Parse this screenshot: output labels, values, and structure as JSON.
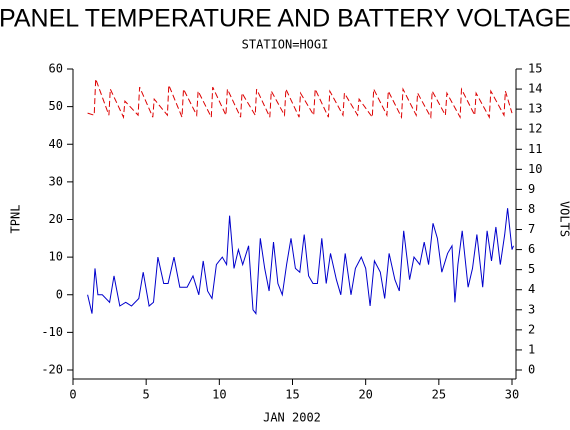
{
  "chart_data": {
    "type": "line",
    "title": "PANEL TEMPERATURE AND BATTERY VOLTAGE",
    "subtitle": "STATION=HOGI",
    "x_label": "JAN 2002",
    "y_label": "TPNL",
    "y2_label": "VOLTS",
    "xlim": [
      0,
      30
    ],
    "xticks": [
      0,
      5,
      10,
      15,
      20,
      25,
      30
    ],
    "ylim": [
      -20,
      60
    ],
    "yticks": [
      -20,
      -10,
      0,
      10,
      20,
      30,
      40,
      50,
      60
    ],
    "y2lim": [
      0,
      15
    ],
    "y2ticks": [
      0,
      1,
      2,
      3,
      4,
      5,
      6,
      7,
      8,
      9,
      10,
      11,
      12,
      13,
      14,
      15
    ],
    "series": [
      {
        "name": "TPNL",
        "color": "#0000cc",
        "dashed": false,
        "x": [
          1,
          1.3,
          1.5,
          1.7,
          2,
          2.5,
          2.8,
          3.2,
          3.6,
          4,
          4.5,
          4.8,
          5.2,
          5.5,
          5.8,
          6.2,
          6.5,
          6.9,
          7.3,
          7.8,
          8.2,
          8.6,
          8.9,
          9.2,
          9.5,
          9.8,
          10.2,
          10.5,
          10.7,
          11,
          11.3,
          11.6,
          12,
          12.3,
          12.5,
          12.8,
          13.1,
          13.4,
          13.7,
          14,
          14.3,
          14.6,
          14.9,
          15.2,
          15.5,
          15.8,
          16.1,
          16.4,
          16.7,
          17,
          17.3,
          17.6,
          18,
          18.3,
          18.6,
          19,
          19.3,
          19.7,
          20,
          20.3,
          20.6,
          21,
          21.3,
          21.6,
          22,
          22.3,
          22.6,
          23,
          23.3,
          23.7,
          24,
          24.3,
          24.6,
          24.9,
          25.2,
          25.6,
          25.9,
          26.1,
          26.3,
          26.6,
          27,
          27.3,
          27.6,
          28,
          28.3,
          28.6,
          28.9,
          29.2,
          29.5,
          29.7,
          30,
          30.1
        ],
        "values": [
          0,
          -5,
          7,
          0,
          0,
          -2,
          5,
          -3,
          -2,
          -3,
          -1,
          6,
          -3,
          -2,
          10,
          3,
          3,
          10,
          2,
          2,
          5,
          0,
          9,
          1,
          -1,
          8,
          10,
          8,
          21,
          7,
          12,
          8,
          13,
          -4,
          -5,
          15,
          7,
          1,
          14,
          3,
          0,
          8,
          15,
          7,
          6,
          16,
          5,
          3,
          3,
          15,
          3,
          11,
          4,
          0,
          11,
          0,
          7,
          10,
          7,
          -3,
          9,
          6,
          -1,
          11,
          4,
          1,
          17,
          4,
          10,
          8,
          14,
          8,
          19,
          15,
          6,
          11,
          13,
          -2,
          8,
          17,
          2,
          7,
          16,
          2,
          17,
          9,
          18,
          8,
          16,
          23,
          12,
          13
        ]
      },
      {
        "name": "VOLTS",
        "color": "#dd0000",
        "dashed": true,
        "axis": "y2",
        "x": [
          1,
          1.45,
          1.55,
          2.45,
          2.55,
          3.45,
          3.55,
          4.45,
          4.55,
          5.45,
          5.55,
          6.45,
          6.55,
          7.45,
          7.55,
          8.45,
          8.55,
          9.45,
          9.55,
          10.45,
          10.55,
          11.45,
          11.55,
          12.45,
          12.55,
          13.45,
          13.55,
          14.45,
          14.55,
          15.45,
          15.55,
          16.45,
          16.55,
          17.45,
          17.55,
          18.45,
          18.55,
          19.45,
          19.55,
          20.45,
          20.55,
          21.45,
          21.55,
          22.45,
          22.55,
          23.45,
          23.55,
          24.45,
          24.55,
          25.45,
          25.55,
          26.45,
          26.55,
          27.45,
          27.55,
          28.45,
          28.55,
          29.45,
          29.55,
          30
        ],
        "values": [
          12.8,
          12.7,
          14.5,
          12.7,
          14.0,
          12.6,
          13.4,
          12.7,
          14.1,
          12.6,
          13.5,
          12.7,
          14.2,
          12.6,
          14.0,
          12.7,
          13.9,
          12.6,
          14.1,
          12.7,
          14.0,
          12.6,
          13.8,
          12.7,
          14.0,
          12.6,
          13.9,
          12.7,
          14.0,
          12.6,
          13.8,
          12.7,
          14.0,
          12.6,
          13.9,
          12.7,
          13.8,
          12.7,
          13.5,
          12.6,
          14.0,
          12.7,
          13.9,
          12.6,
          14.0,
          12.7,
          13.8,
          12.6,
          13.9,
          12.7,
          13.8,
          12.6,
          14.0,
          12.7,
          13.8,
          12.6,
          13.9,
          12.7,
          13.9,
          12.8
        ]
      }
    ]
  }
}
